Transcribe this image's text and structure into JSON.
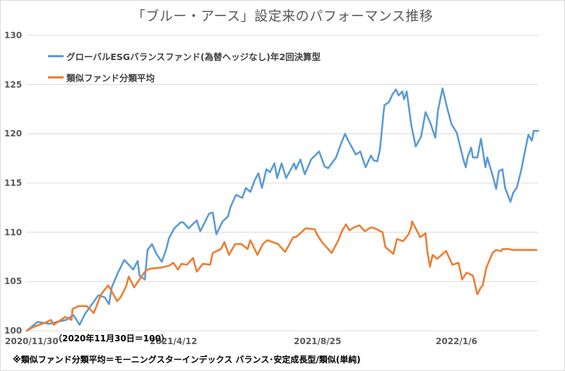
{
  "chart_data": {
    "type": "line",
    "title": "「ブルー・アース」設定来のパフォーマンス推移",
    "xlabel": "",
    "ylabel": "",
    "ylim": [
      100,
      130
    ],
    "yticks": [
      "100",
      "105",
      "110",
      "115",
      "120",
      "125",
      "130"
    ],
    "xticks": [
      "2020/11/30",
      "2021/4/12",
      "2021/8/25",
      "2022/1/6"
    ],
    "x_range": [
      "2020/11/30",
      "2022/3/8"
    ],
    "grid": true,
    "legend_position": "top-left",
    "base_note": "（2020年11月30日＝100）",
    "footnote": "※類似ファンド分類平均＝モーニングスターインデックス バランス･安定成長型/類似(単純)",
    "series": [
      {
        "name": "グローバルESGバランスファンド(為替ヘッジなし)年2回決算型",
        "color": "#5b9bd5",
        "x_index": [
          0,
          12,
          25,
          44,
          52,
          59,
          65,
          80,
          87,
          92,
          95,
          102,
          109,
          119,
          124,
          126,
          132,
          135,
          140,
          145,
          151,
          156,
          159,
          165,
          172,
          175,
          181,
          190,
          194,
          204,
          208,
          212,
          219,
          225,
          228,
          234,
          241,
          245,
          250,
          255,
          259,
          263,
          268,
          272,
          277,
          280,
          285,
          290,
          299,
          301,
          306,
          311,
          318,
          327,
          333,
          337,
          346,
          351,
          356,
          359,
          368,
          373,
          379,
          385,
          388,
          392,
          395,
          399,
          400,
          405,
          409,
          413,
          416,
          420,
          422,
          425,
          430,
          435,
          441,
          446,
          451,
          457,
          460,
          465,
          470,
          475,
          481,
          485,
          488,
          491,
          493,
          497,
          499,
          504,
          508,
          513,
          515,
          521,
          525,
          528,
          532,
          535,
          541,
          544,
          548,
          553,
          557,
          561,
          565,
          567,
          572
        ],
        "values": [
          100.0,
          100.9,
          100.7,
          101.1,
          101.6,
          100.6,
          101.7,
          103.6,
          103.4,
          102.7,
          104.4,
          105.9,
          107.2,
          106.2,
          107.1,
          105.6,
          105.2,
          108.2,
          108.8,
          107.8,
          107.0,
          108.3,
          109.4,
          110.4,
          111.0,
          111.0,
          110.4,
          111.2,
          110.1,
          111.9,
          112.0,
          109.8,
          111.1,
          111.6,
          112.6,
          113.8,
          113.5,
          114.5,
          114.1,
          115.3,
          116.0,
          114.5,
          116.4,
          116.1,
          117.0,
          115.5,
          117.0,
          115.5,
          117.0,
          116.4,
          117.4,
          115.9,
          117.4,
          118.2,
          116.7,
          116.5,
          117.6,
          118.9,
          120.0,
          119.4,
          117.9,
          118.2,
          116.6,
          117.8,
          117.3,
          117.2,
          118.4,
          122.1,
          122.9,
          123.2,
          124.0,
          124.5,
          123.9,
          124.3,
          123.5,
          124.3,
          120.9,
          118.7,
          119.7,
          122.2,
          121.2,
          119.6,
          122.4,
          124.6,
          122.7,
          121.0,
          120.1,
          118.6,
          117.5,
          116.6,
          117.6,
          118.6,
          117.6,
          117.6,
          119.5,
          116.6,
          117.6,
          115.8,
          114.4,
          116.2,
          116.4,
          114.5,
          113.1,
          114.0,
          114.5,
          116.3,
          118.1,
          119.9,
          119.3,
          120.3,
          120.3
        ]
      },
      {
        "name": "類似ファンド分類平均",
        "color": "#ed7d31",
        "x_index": [
          0,
          8,
          20,
          27,
          30,
          43,
          50,
          51,
          58,
          67,
          75,
          83,
          91,
          95,
          101,
          105,
          111,
          114,
          120,
          126,
          133,
          138,
          150,
          159,
          164,
          169,
          173,
          179,
          186,
          190,
          197,
          205,
          208,
          217,
          221,
          226,
          233,
          240,
          247,
          250,
          258,
          264,
          269,
          281,
          289,
          298,
          301,
          312,
          322,
          325,
          331,
          341,
          348,
          353,
          357,
          361,
          366,
          372,
          378,
          385,
          389,
          398,
          401,
          410,
          414,
          421,
          427,
          430,
          431,
          440,
          446,
          448,
          451,
          454,
          459,
          469,
          476,
          483,
          487,
          492,
          499,
          504,
          508,
          510,
          514,
          521,
          525,
          529,
          531,
          532,
          535,
          539,
          543,
          546,
          548,
          552,
          555,
          559,
          561,
          566,
          570
        ],
        "values": [
          100.0,
          100.4,
          100.8,
          101.1,
          100.6,
          101.4,
          101.1,
          102.2,
          102.5,
          102.5,
          101.8,
          103.7,
          104.6,
          104.0,
          103.0,
          103.4,
          104.5,
          105.5,
          104.4,
          105.2,
          106.1,
          106.3,
          106.4,
          106.6,
          106.9,
          106.2,
          106.8,
          106.7,
          107.4,
          106.0,
          106.8,
          106.7,
          107.9,
          108.3,
          109.0,
          107.7,
          108.8,
          108.8,
          108.3,
          109.2,
          107.7,
          108.8,
          109.2,
          108.8,
          108.0,
          109.5,
          109.5,
          110.4,
          110.3,
          109.7,
          108.9,
          107.9,
          109.1,
          110.2,
          110.8,
          110.2,
          110.5,
          110.7,
          110.1,
          110.5,
          110.4,
          110.0,
          108.5,
          107.8,
          109.3,
          109.1,
          109.8,
          110.5,
          111.1,
          109.5,
          109.9,
          108.1,
          106.5,
          107.7,
          107.3,
          108.1,
          106.7,
          106.9,
          105.2,
          105.9,
          105.6,
          103.7,
          104.4,
          104.6,
          106.4,
          107.9,
          108.2,
          108.1,
          108.1,
          108.3,
          108.3,
          108.3,
          108.2,
          108.2,
          108.2,
          108.2,
          108.2,
          108.2,
          108.2,
          108.2,
          108.2
        ]
      }
    ]
  }
}
